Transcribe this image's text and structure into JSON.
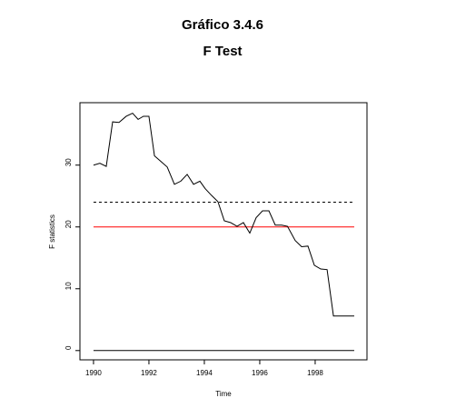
{
  "chart_data": {
    "type": "line",
    "title": "Gráfico 3.4.6",
    "subtitle": "F Test",
    "x_label": "Time",
    "y_label": "F statistics",
    "xlim": [
      1989.51,
      1999.87
    ],
    "ylim": [
      -1.5,
      40.1
    ],
    "xticks": [
      1990,
      1992,
      1994,
      1996,
      1998
    ],
    "yticks": [
      0,
      10,
      20,
      30
    ],
    "series": [
      {
        "color": "#000000",
        "x": [
          1990.0,
          1990.23,
          1990.46,
          1990.69,
          1990.92,
          1991.18,
          1991.41,
          1991.61,
          1991.8,
          1992.0,
          1992.2,
          1992.43,
          1992.66,
          1992.92,
          1993.15,
          1993.38,
          1993.61,
          1993.84,
          1994.03,
          1994.26,
          1994.49,
          1994.72,
          1994.95,
          1995.18,
          1995.41,
          1995.64,
          1995.87,
          1996.1,
          1996.33,
          1996.56,
          1996.79,
          1997.0,
          1997.28,
          1997.51,
          1997.74,
          1997.97,
          1998.2,
          1998.43,
          1998.66,
          1998.89,
          1999.41
        ],
        "values": [
          30,
          30.3,
          29.8,
          37,
          36.9,
          37.9,
          38.4,
          37.4,
          37.9,
          37.9,
          31.5,
          30.6,
          29.7,
          26.9,
          27.4,
          28.5,
          26.9,
          27.4,
          26.2,
          25.1,
          24.1,
          21,
          20.7,
          20.1,
          20.7,
          19,
          21.5,
          22.6,
          22.6,
          20.3,
          20.3,
          20.1,
          17.8,
          16.8,
          16.9,
          13.8,
          13.2,
          13.1,
          5.6,
          5.6,
          5.6
        ]
      }
    ],
    "reference_lines": [
      {
        "value": 24,
        "color": "#000000",
        "style": "dashed"
      },
      {
        "value": 20,
        "color": "#ff0000",
        "style": "solid"
      },
      {
        "value": 0,
        "color": "#000000",
        "style": "solid"
      }
    ]
  }
}
